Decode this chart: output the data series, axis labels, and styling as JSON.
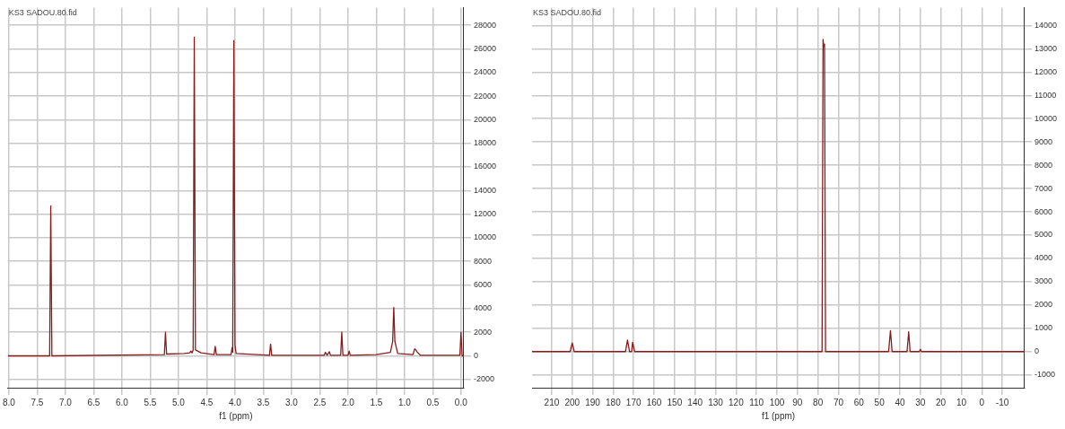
{
  "chart_data": [
    {
      "type": "line",
      "annotations": [
        "KS3 SADOU.80.fid"
      ],
      "xlabel": "f1 (ppm)",
      "xlim": [
        8.02,
        -0.05
      ],
      "ylim": [
        -2700,
        29500
      ],
      "xticks": [
        {
          "value": 8,
          "label": "8.0"
        },
        {
          "value": 7.5,
          "label": "7.5"
        },
        {
          "value": 7,
          "label": "7.0"
        },
        {
          "value": 6.5,
          "label": "6.5"
        },
        {
          "value": 6,
          "label": "6.0"
        },
        {
          "value": 5.5,
          "label": "5.5"
        },
        {
          "value": 5,
          "label": "5.0"
        },
        {
          "value": 4.5,
          "label": "4.5"
        },
        {
          "value": 4,
          "label": "4.0"
        },
        {
          "value": 3.5,
          "label": "3.5"
        },
        {
          "value": 3,
          "label": "3.0"
        },
        {
          "value": 2.5,
          "label": "2.5"
        },
        {
          "value": 2,
          "label": "2.0"
        },
        {
          "value": 1.5,
          "label": "1.5"
        },
        {
          "value": 1,
          "label": "1.0"
        },
        {
          "value": 0.5,
          "label": "0.5"
        },
        {
          "value": 0,
          "label": "0.0"
        }
      ],
      "yticks": [
        -2000,
        0,
        2000,
        4000,
        6000,
        8000,
        10000,
        12000,
        14000,
        16000,
        18000,
        20000,
        22000,
        24000,
        26000,
        28000
      ],
      "grid": true,
      "marker": "none",
      "line_style": "solid",
      "series": [
        {
          "color": "#8b1a1a",
          "x": [
            8.02,
            7.28,
            7.26,
            7.24,
            5.25,
            5.23,
            5.21,
            4.9,
            4.8,
            4.78,
            4.76,
            4.74,
            4.72,
            4.7,
            4.6,
            4.37,
            4.35,
            4.33,
            4.07,
            4.05,
            4.04,
            4.02,
            4.0,
            3.98,
            3.39,
            3.37,
            3.35,
            2.42,
            2.4,
            2.37,
            2.33,
            2.31,
            2.13,
            2.11,
            2.09,
            2.0,
            1.98,
            1.96,
            1.5,
            1.25,
            1.21,
            1.19,
            1.17,
            1.12,
            0.85,
            0.82,
            0.8,
            0.78,
            0.72,
            0.02,
            0.0,
            -0.02,
            -0.05
          ],
          "values": [
            0,
            0,
            12700,
            0,
            100,
            2000,
            150,
            200,
            250,
            400,
            250,
            500,
            27000,
            500,
            250,
            100,
            800,
            100,
            100,
            700,
            300,
            26700,
            900,
            200,
            50,
            1000,
            50,
            50,
            300,
            50,
            350,
            50,
            50,
            2000,
            50,
            50,
            400,
            50,
            100,
            300,
            1200,
            4100,
            1200,
            200,
            100,
            600,
            500,
            350,
            50,
            50,
            2000,
            0,
            0
          ]
        }
      ]
    },
    {
      "type": "line",
      "annotations": [
        "KS3 SADOU.80.fid"
      ],
      "xlabel": "f1 (ppm)",
      "xlim": [
        219.6,
        -20.9
      ],
      "ylim": [
        -1550,
        14770
      ],
      "xticks": [
        210,
        200,
        190,
        180,
        170,
        160,
        150,
        140,
        130,
        120,
        110,
        100,
        90,
        80,
        70,
        60,
        50,
        40,
        30,
        20,
        10,
        0,
        -10
      ],
      "yticks": [
        -1000,
        0,
        1000,
        2000,
        3000,
        4000,
        5000,
        6000,
        7000,
        8000,
        9000,
        10000,
        11000,
        12000,
        13000,
        14000
      ],
      "grid": true,
      "marker": "none",
      "line_style": "solid",
      "series": [
        {
          "color": "#8b1a1a",
          "x": [
            219.6,
            201,
            200,
            199,
            174,
            173,
            172,
            171,
            170.5,
            169.5,
            78,
            77.5,
            77.2,
            76.8,
            76.3,
            45.5,
            44.6,
            43.8,
            36.5,
            35.7,
            35,
            30.5,
            30,
            29.5,
            -20.9
          ],
          "values": [
            0,
            0,
            370,
            0,
            0,
            500,
            0,
            0,
            400,
            0,
            0,
            13400,
            13100,
            13200,
            0,
            0,
            900,
            0,
            0,
            850,
            0,
            0,
            100,
            0,
            0
          ]
        }
      ]
    }
  ]
}
